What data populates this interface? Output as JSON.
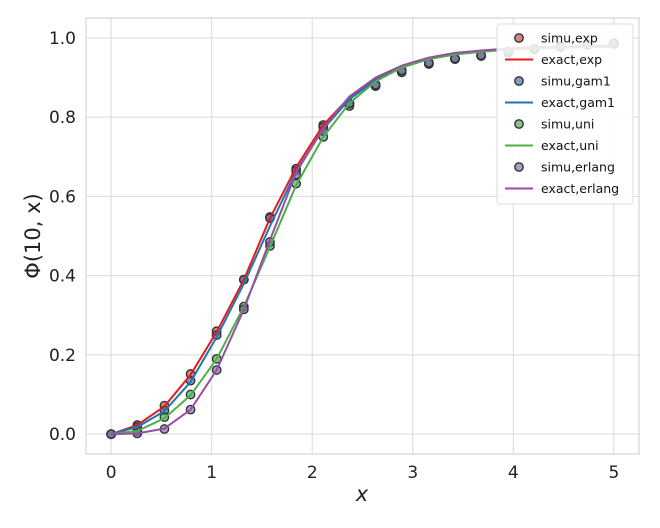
{
  "chart_data": {
    "type": "line",
    "title": "",
    "xlabel": "x",
    "ylabel": "Φ(10, x)",
    "xlim": [
      -0.25,
      5.25
    ],
    "ylim": [
      -0.05,
      1.05
    ],
    "xticks": [
      0,
      1,
      2,
      3,
      4,
      5
    ],
    "yticks": [
      0.0,
      0.2,
      0.4,
      0.6,
      0.8,
      1.0
    ],
    "xtick_labels": [
      "0",
      "1",
      "2",
      "3",
      "4",
      "5"
    ],
    "ytick_labels": [
      "0.0",
      "0.2",
      "0.4",
      "0.6",
      "0.8",
      "1.0"
    ],
    "grid": true,
    "legend_position": "top-right",
    "x": [
      0,
      0.26,
      0.53,
      0.79,
      1.05,
      1.32,
      1.58,
      1.84,
      2.11,
      2.37,
      2.63,
      2.89,
      3.16,
      3.42,
      3.68,
      3.95,
      4.21,
      4.47,
      4.74,
      5.0
    ],
    "series": [
      {
        "name": "simu,exp",
        "kind": "scatter",
        "color": "#c44e52",
        "values": [
          0.0,
          0.023,
          0.072,
          0.152,
          0.26,
          0.39,
          0.548,
          0.67,
          0.78,
          0.835,
          0.882,
          0.918,
          0.937,
          0.948,
          0.955,
          0.965,
          0.972,
          0.978,
          0.983,
          0.985
        ]
      },
      {
        "name": "exact,exp",
        "kind": "line",
        "color": "#e41a1c",
        "values": [
          0.0,
          0.023,
          0.07,
          0.15,
          0.258,
          0.39,
          0.545,
          0.673,
          0.78,
          0.85,
          0.895,
          0.927,
          0.948,
          0.96,
          0.967,
          0.972,
          0.975,
          0.977,
          0.978,
          0.979
        ]
      },
      {
        "name": "simu,gam1",
        "kind": "scatter",
        "color": "#4c72b0",
        "values": [
          0.0,
          0.018,
          0.06,
          0.135,
          0.25,
          0.39,
          0.545,
          0.665,
          0.775,
          0.832,
          0.88,
          0.915,
          0.935,
          0.947,
          0.955,
          0.964,
          0.971,
          0.977,
          0.982,
          0.985
        ]
      },
      {
        "name": "exact,gam1",
        "kind": "line",
        "color": "#1f77b4",
        "values": [
          0.0,
          0.018,
          0.058,
          0.132,
          0.245,
          0.38,
          0.525,
          0.663,
          0.77,
          0.845,
          0.893,
          0.925,
          0.947,
          0.959,
          0.966,
          0.971,
          0.974,
          0.976,
          0.977,
          0.978
        ]
      },
      {
        "name": "simu,uni",
        "kind": "scatter",
        "color": "#55a868",
        "values": [
          0.0,
          0.008,
          0.043,
          0.1,
          0.19,
          0.322,
          0.475,
          0.632,
          0.75,
          0.828,
          0.878,
          0.913,
          0.934,
          0.946,
          0.954,
          0.963,
          0.971,
          0.977,
          0.982,
          0.985
        ]
      },
      {
        "name": "exact,uni",
        "kind": "line",
        "color": "#4daf4a",
        "values": [
          0.0,
          0.008,
          0.04,
          0.098,
          0.19,
          0.322,
          0.473,
          0.628,
          0.75,
          0.835,
          0.89,
          0.925,
          0.946,
          0.958,
          0.965,
          0.97,
          0.973,
          0.975,
          0.976,
          0.977
        ]
      },
      {
        "name": "simu,erlang",
        "kind": "scatter",
        "color": "#8172b2",
        "values": [
          0.0,
          0.002,
          0.013,
          0.062,
          0.162,
          0.315,
          0.485,
          0.655,
          0.765,
          0.835,
          0.882,
          0.918,
          0.937,
          0.948,
          0.956,
          0.965,
          0.972,
          0.978,
          0.983,
          0.986
        ]
      },
      {
        "name": "exact,erlang",
        "kind": "line",
        "color": "#984ea3",
        "values": [
          0.0,
          0.002,
          0.014,
          0.062,
          0.162,
          0.315,
          0.49,
          0.66,
          0.772,
          0.852,
          0.9,
          0.93,
          0.95,
          0.962,
          0.968,
          0.973,
          0.976,
          0.978,
          0.979,
          0.98
        ]
      }
    ]
  }
}
